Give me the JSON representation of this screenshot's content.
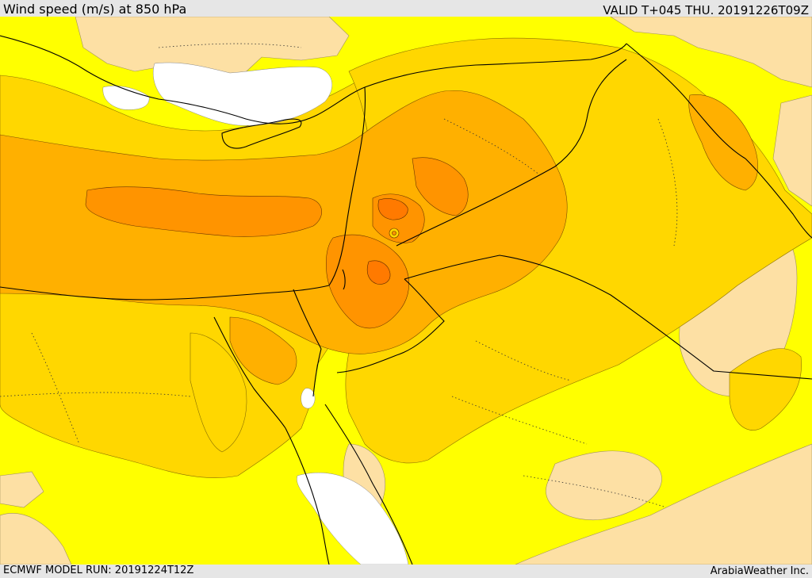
{
  "header": {
    "title": "Wind speed (m/s) at 850 hPa",
    "valid_time": "VALID T+045 THU. 20191226T09Z"
  },
  "footer": {
    "model_run": "ECMWF MODEL RUN: 20191224T12Z",
    "credit": "ArabiaWeather Inc."
  },
  "colors": {
    "no_wind": "#ffffff",
    "calm": "#fde0a4",
    "light": "#ffff00",
    "moderate": "#ffd700",
    "fresh": "#ffb000",
    "strong": "#ff9400",
    "very_strong": "#ff7a00",
    "boundaries": "#000000"
  }
}
